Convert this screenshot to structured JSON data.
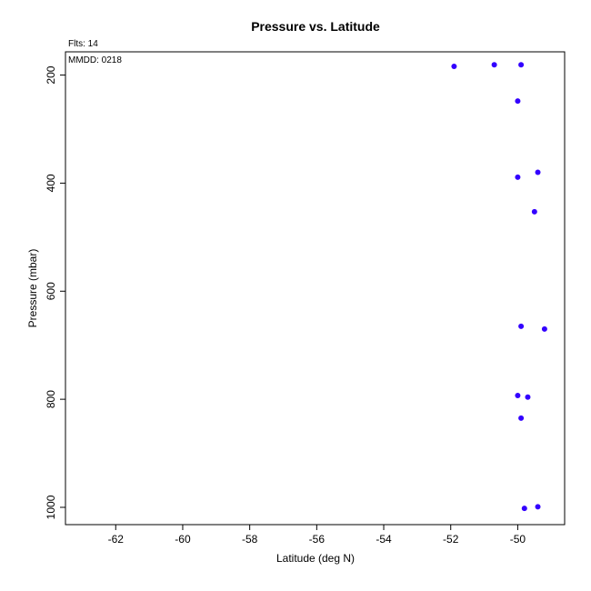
{
  "header": {
    "flights_note": "Flts: 14",
    "date_note": "MMDD: 0218"
  },
  "colors": {
    "point": "#3300ff",
    "axis": "#000000",
    "background": "#ffffff"
  },
  "chart_data": {
    "type": "scatter",
    "title": "Pressure vs. Latitude",
    "xlabel": "Latitude (deg N)",
    "ylabel": "Pressure (mbar)",
    "xlim": [
      -63.5,
      -48.6
    ],
    "ylim": [
      1032,
      157
    ],
    "y_inverted": true,
    "grid": false,
    "legend": "none",
    "x_ticks": [
      -62,
      -60,
      -58,
      -56,
      -54,
      -52,
      -50
    ],
    "y_ticks": [
      200,
      400,
      600,
      800,
      1000
    ],
    "points": [
      {
        "x": -51.9,
        "y": 184
      },
      {
        "x": -50.7,
        "y": 181
      },
      {
        "x": -49.9,
        "y": 181
      },
      {
        "x": -50.0,
        "y": 248
      },
      {
        "x": -49.4,
        "y": 380
      },
      {
        "x": -50.0,
        "y": 389
      },
      {
        "x": -49.5,
        "y": 453
      },
      {
        "x": -49.9,
        "y": 665
      },
      {
        "x": -49.2,
        "y": 670
      },
      {
        "x": -50.0,
        "y": 793
      },
      {
        "x": -49.7,
        "y": 796
      },
      {
        "x": -49.9,
        "y": 835
      },
      {
        "x": -49.4,
        "y": 999
      },
      {
        "x": -49.8,
        "y": 1002
      }
    ]
  }
}
